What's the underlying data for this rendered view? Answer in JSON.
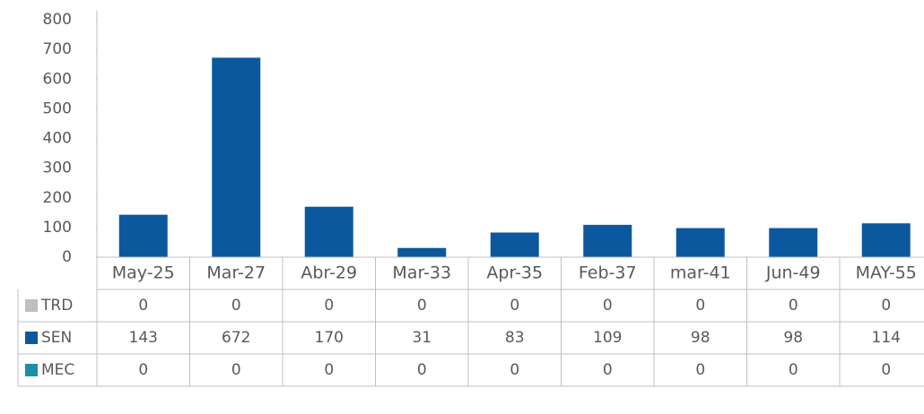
{
  "chart_data": {
    "type": "bar",
    "categories": [
      "May-25",
      "Mar-27",
      "Abr-29",
      "Mar-33",
      "Apr-35",
      "Feb-37",
      "mar-41",
      "Jun-49",
      "MAY-55"
    ],
    "series": [
      {
        "name": "TRD",
        "color": "#bfbfbf",
        "values": [
          0,
          0,
          0,
          0,
          0,
          0,
          0,
          0,
          0
        ]
      },
      {
        "name": "SEN",
        "color": "#0b589f",
        "values": [
          143,
          672,
          170,
          31,
          83,
          109,
          98,
          98,
          114
        ]
      },
      {
        "name": "MEC",
        "color": "#1a8fa5",
        "values": [
          0,
          0,
          0,
          0,
          0,
          0,
          0,
          0,
          0
        ]
      }
    ],
    "ylim": [
      0,
      800
    ],
    "yticks": [
      0,
      100,
      200,
      300,
      400,
      500,
      600,
      700,
      800
    ]
  }
}
